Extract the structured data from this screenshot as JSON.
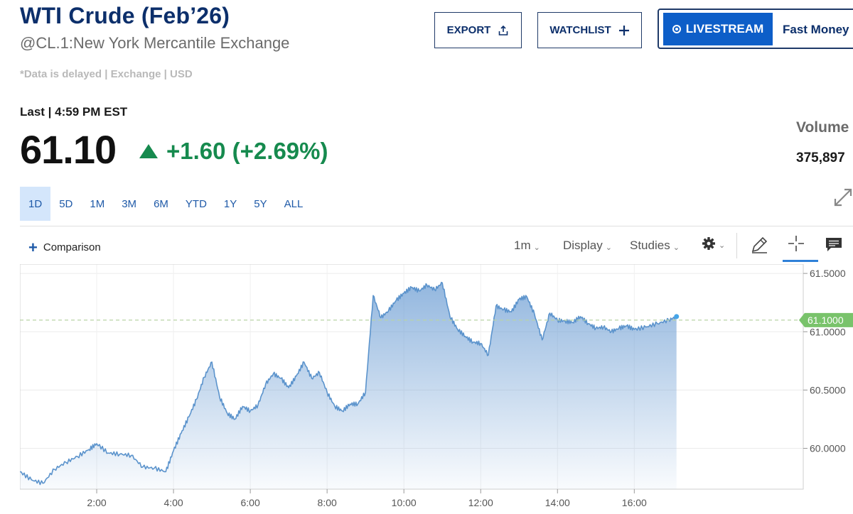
{
  "header": {
    "title": "WTI Crude (Feb’26)",
    "subtitle": "@CL.1:New York Mercantile Exchange",
    "delay_note": "*Data is delayed | Exchange | USD"
  },
  "actions": {
    "export_label": "EXPORT",
    "watchlist_label": "WATCHLIST",
    "livestream_label": "LIVESTREAM",
    "show_label": "Fast Money"
  },
  "quote": {
    "last_label": "Last | 4:59 PM EST",
    "price": "61.10",
    "change": "+1.60 (+2.69%)",
    "volume_label": "Volume",
    "volume_value": "375,897"
  },
  "ranges": [
    "1D",
    "5D",
    "1M",
    "3M",
    "6M",
    "YTD",
    "1Y",
    "5Y",
    "ALL"
  ],
  "active_range": "1D",
  "toolbar": {
    "comparison_label": "Comparison",
    "interval_label": "1m",
    "display_label": "Display",
    "studies_label": "Studies"
  },
  "colors": {
    "accent_blue": "#0d5ec8",
    "navy": "#0c2f6b",
    "positive": "#168a4e",
    "line": "#5b93cc",
    "price_badge": "#79c36b"
  },
  "chart_data": {
    "type": "area",
    "x_ticks": [
      "2:00",
      "4:00",
      "6:00",
      "8:00",
      "10:00",
      "12:00",
      "14:00",
      "16:00"
    ],
    "y_ticks": [
      "60.0000",
      "60.5000",
      "61.0000",
      "61.5000"
    ],
    "ylim": [
      59.65,
      61.58
    ],
    "xlim_hours": [
      0.0,
      20.4
    ],
    "last_price_label": "61.1000",
    "last_price": 61.1,
    "x": [
      0.0,
      0.3,
      0.6,
      0.9,
      1.2,
      1.5,
      1.8,
      2.0,
      2.3,
      2.6,
      2.9,
      3.2,
      3.5,
      3.8,
      4.0,
      4.2,
      4.4,
      4.6,
      4.8,
      5.0,
      5.2,
      5.4,
      5.6,
      5.8,
      6.0,
      6.2,
      6.4,
      6.6,
      6.8,
      7.0,
      7.2,
      7.4,
      7.6,
      7.8,
      8.0,
      8.2,
      8.4,
      8.6,
      8.8,
      9.0,
      9.2,
      9.4,
      9.6,
      9.8,
      10.0,
      10.2,
      10.4,
      10.6,
      10.8,
      11.0,
      11.2,
      11.4,
      11.6,
      11.8,
      12.0,
      12.2,
      12.4,
      12.6,
      12.8,
      13.0,
      13.2,
      13.4,
      13.6,
      13.8,
      14.0,
      14.2,
      14.4,
      14.6,
      14.8,
      15.0,
      15.2,
      15.4,
      15.6,
      15.8,
      16.0,
      16.3,
      16.6,
      16.9,
      17.1
    ],
    "y": [
      59.8,
      59.73,
      59.7,
      59.82,
      59.88,
      59.93,
      59.99,
      60.04,
      59.96,
      59.95,
      59.94,
      59.84,
      59.83,
      59.8,
      59.98,
      60.13,
      60.27,
      60.42,
      60.61,
      60.74,
      60.44,
      60.3,
      60.25,
      60.36,
      60.32,
      60.37,
      60.55,
      60.64,
      60.6,
      60.52,
      60.62,
      60.74,
      60.6,
      60.65,
      60.48,
      60.36,
      60.32,
      60.38,
      60.38,
      60.48,
      61.31,
      61.12,
      61.18,
      61.27,
      61.33,
      61.38,
      61.35,
      61.4,
      61.36,
      61.42,
      61.13,
      61.02,
      60.96,
      60.91,
      60.9,
      60.8,
      61.22,
      61.19,
      61.17,
      61.28,
      61.3,
      61.15,
      60.93,
      61.16,
      61.1,
      61.09,
      61.08,
      61.13,
      61.07,
      61.03,
      61.04,
      61.0,
      61.03,
      61.05,
      61.02,
      61.04,
      61.07,
      61.1,
      61.13
    ]
  }
}
